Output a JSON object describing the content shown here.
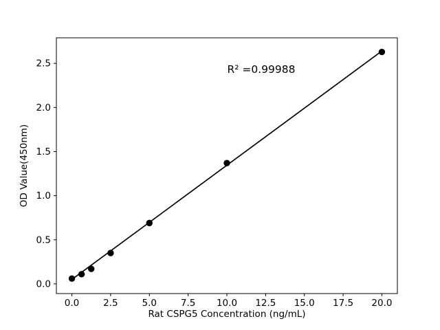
{
  "figure": {
    "background": "#ffffff"
  },
  "chart_data": {
    "type": "scatter",
    "xlabel": "Rat CSPG5 Concentration (ng/mL)",
    "ylabel": "OD Value(450nm)",
    "annotation": "R² =0.99988",
    "x": [
      0,
      0.625,
      1.25,
      2.5,
      5,
      10,
      20
    ],
    "y": [
      0.06,
      0.11,
      0.17,
      0.35,
      0.69,
      1.37,
      2.63
    ],
    "fit_line": {
      "x1": 0,
      "y1": 0.05,
      "x2": 20,
      "y2": 2.64
    },
    "xlim": [
      -1,
      21
    ],
    "ylim": [
      -0.11,
      2.79
    ],
    "xticks": [
      0,
      2.5,
      5,
      7.5,
      10,
      12.5,
      15,
      17.5,
      20
    ],
    "xtick_labels": [
      "0.0",
      "2.5",
      "5.0",
      "7.5",
      "10.0",
      "12.5",
      "15.0",
      "17.5",
      "20.0"
    ],
    "yticks": [
      0,
      0.5,
      1,
      1.5,
      2,
      2.5
    ],
    "ytick_labels": [
      "0.0",
      "0.5",
      "1.0",
      "1.5",
      "2.0",
      "2.5"
    ],
    "grid": false,
    "legend_position": "none",
    "marker_color": "#000000",
    "line_color": "#000000",
    "axis_color": "#000000"
  }
}
